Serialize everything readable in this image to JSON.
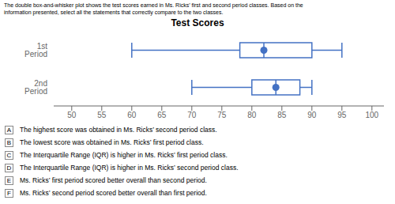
{
  "chart_data": {
    "type": "box",
    "title": "Test Scores",
    "categories": [
      "1st Period",
      "2nd Period"
    ],
    "min": [
      60,
      70
    ],
    "q1": [
      78,
      80
    ],
    "median": [
      82,
      84
    ],
    "q3": [
      90,
      88
    ],
    "max": [
      95,
      90
    ],
    "color": "#4472C4",
    "xlim": [
      47,
      102
    ],
    "xticks": [
      50,
      55,
      60,
      65,
      70,
      75,
      80,
      85,
      90,
      95,
      100
    ],
    "grid": false,
    "legend": false,
    "annotations": [
      "The double box-and-whisker plot shows the test scores earned in Ms. Ricks’ first and second period classes. Based on the",
      "information presented, select all the statements that correctly compare to the two classes."
    ],
    "answer_options": [
      {
        "label": "A",
        "text": "The highest score was obtained in Ms. Ricks’ second period class."
      },
      {
        "label": "B",
        "text": "The lowest score was obtained in Ms. Ricks’ first period class."
      },
      {
        "label": "C",
        "text": "The Interquartile Range (IQR) is higher in Ms. Ricks’ first period class."
      },
      {
        "label": "D",
        "text": "The Interquartile Range (IQR) is higher in Ms. Ricks’ second period class."
      },
      {
        "label": "E",
        "text": "Ms. Ricks’ first period scored better overall than second period."
      },
      {
        "label": "F",
        "text": "Ms. Ricks’ second period scored better overall than first period."
      }
    ]
  }
}
